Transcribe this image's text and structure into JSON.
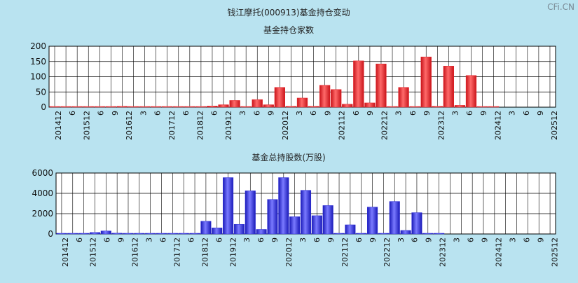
{
  "page": {
    "title": "钱江摩托(000913)基金持仓变动",
    "watermark": "CFi.CN",
    "background": "#b9e3f0"
  },
  "chart_data": [
    {
      "type": "bar",
      "title": "基金持仓家数",
      "ylim": [
        0,
        200
      ],
      "yticks": [
        0,
        50,
        100,
        150,
        200
      ],
      "grid": true,
      "color": "#e8242a",
      "categories": [
        "201412",
        "3",
        "6",
        "9",
        "201512",
        "3",
        "6",
        "9",
        "201612",
        "3",
        "6",
        "9",
        "201712",
        "3",
        "6",
        "9",
        "201812",
        "3",
        "6",
        "9",
        "201912",
        "3",
        "6",
        "9",
        "202012",
        "3",
        "6",
        "9",
        "202112",
        "3",
        "6",
        "9",
        "202212",
        "3",
        "6",
        "9",
        "202312",
        "3",
        "6",
        "9",
        "202412",
        "3",
        "6",
        "9",
        "202512"
      ],
      "labeled_categories": [
        "201412",
        "6",
        "201512",
        "6",
        "9",
        "201612",
        "3",
        "6",
        "201712",
        "6",
        "201812",
        "6",
        "201912",
        "3",
        "6",
        "9",
        "202012",
        "3",
        "6",
        "9",
        "202112",
        "6",
        "9",
        "202212",
        "3",
        "6",
        "9",
        "202312",
        "3",
        "6",
        "9",
        "202412",
        "3",
        "6",
        "9",
        "202512"
      ],
      "values": [
        1,
        1,
        1,
        1,
        1,
        1,
        3,
        1,
        1,
        1,
        1,
        1,
        1,
        1,
        4,
        8,
        22,
        2,
        25,
        8,
        65,
        3,
        30,
        3,
        72,
        58,
        10,
        152,
        14,
        142,
        2,
        65,
        2,
        165,
        3,
        135,
        6,
        104,
        1,
        1,
        0,
        0,
        0,
        0,
        0
      ]
    },
    {
      "type": "bar",
      "title": "基金总持股数(万股)",
      "ylim": [
        0,
        6000
      ],
      "yticks": [
        0,
        2000,
        4000,
        6000
      ],
      "grid": true,
      "color": "#3030d8",
      "categories": [
        "201412",
        "3",
        "6",
        "9",
        "201512",
        "3",
        "6",
        "9",
        "201612",
        "3",
        "6",
        "9",
        "201712",
        "3",
        "6",
        "9",
        "201812",
        "3",
        "6",
        "9",
        "201912",
        "3",
        "6",
        "9",
        "202012",
        "3",
        "6",
        "9",
        "202112",
        "3",
        "6",
        "9",
        "202212",
        "3",
        "6",
        "9",
        "202312",
        "3",
        "6",
        "9",
        "202412",
        "3",
        "6",
        "9",
        "202512"
      ],
      "labeled_categories": [
        "201412",
        "6",
        "201512",
        "6",
        "9",
        "201612",
        "3",
        "6",
        "201712",
        "6",
        "201812",
        "6",
        "201912",
        "3",
        "6",
        "9",
        "202012",
        "3",
        "6",
        "9",
        "202112",
        "6",
        "9",
        "202212",
        "3",
        "6",
        "9",
        "202312",
        "3",
        "6",
        "9",
        "202412",
        "3",
        "6",
        "9",
        "202512"
      ],
      "values": [
        20,
        10,
        20,
        150,
        300,
        80,
        20,
        20,
        20,
        20,
        20,
        20,
        20,
        1250,
        600,
        5550,
        950,
        4250,
        450,
        3400,
        5550,
        1700,
        4300,
        1800,
        2800,
        50,
        900,
        50,
        2650,
        50,
        3200,
        350,
        2100,
        30,
        30,
        0,
        0,
        0,
        0,
        0,
        0,
        0,
        0,
        0,
        0
      ]
    }
  ]
}
